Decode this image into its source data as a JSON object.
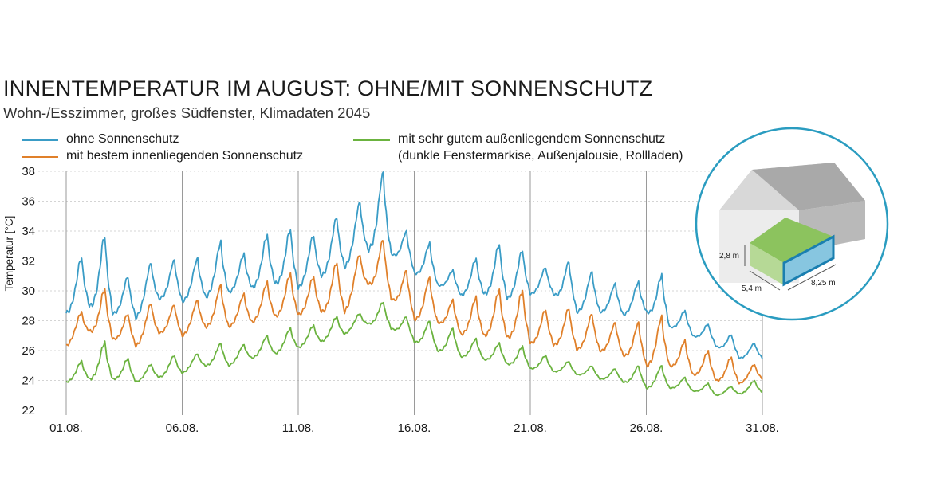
{
  "title": "INNENTEMPERATUR IM AUGUST: OHNE/MIT SONNENSCHUTZ",
  "subtitle": "Wohn-/Esszimmer, großes Südfenster, Klimadaten 2045",
  "legend": [
    {
      "label": "ohne Sonnenschutz",
      "color": "#3a9cc6"
    },
    {
      "label": "mit bestem innenliegenden Sonnenschutz",
      "color": "#e0802a"
    },
    {
      "label": "mit sehr gutem außenliegendem Sonnenschutz",
      "label2": "(dunkle Fenstermarkise, Außenjalousie, Rollladen)",
      "color": "#6bb33f"
    }
  ],
  "room_diagram": {
    "height_label": "2,8 m",
    "depth_label": "5,4 m",
    "width_label": "8,25 m"
  },
  "chart_data": {
    "type": "line",
    "title": "INNENTEMPERATUR IM AUGUST: OHNE/MIT SONNENSCHUTZ",
    "xlabel": "",
    "ylabel": "Temperatur [°C]",
    "ylim": [
      22,
      38
    ],
    "yticks": [
      22,
      24,
      26,
      28,
      30,
      32,
      34,
      36,
      38
    ],
    "xlim": [
      1,
      31
    ],
    "xticks": [
      {
        "day": 1,
        "label": "01.08."
      },
      {
        "day": 6,
        "label": "06.08."
      },
      {
        "day": 11,
        "label": "11.08."
      },
      {
        "day": 16,
        "label": "16.08."
      },
      {
        "day": 21,
        "label": "21.08."
      },
      {
        "day": 26,
        "label": "26.08."
      },
      {
        "day": 31,
        "label": "31.08."
      }
    ],
    "series": [
      {
        "name": "ohne Sonnenschutz",
        "color": "#3a9cc6",
        "daily_min": [
          28.5,
          29.0,
          28.5,
          28.2,
          29.5,
          29.3,
          29.6,
          29.9,
          30.2,
          30.5,
          30.2,
          31.0,
          31.6,
          32.8,
          32.5,
          31.2,
          30.4,
          29.7,
          29.8,
          29.5,
          29.8,
          29.8,
          28.6,
          28.6,
          28.4,
          28.6,
          27.6,
          27.0,
          26.3,
          25.5,
          25.5
        ],
        "daily_max": [
          32.3,
          33.8,
          31.0,
          31.9,
          32.1,
          32.2,
          33.3,
          32.5,
          33.8,
          34.2,
          33.8,
          35.0,
          36.0,
          38.0,
          34.0,
          33.2,
          31.4,
          32.2,
          33.2,
          32.8,
          31.6,
          32.0,
          31.3,
          30.5,
          30.6,
          31.1,
          28.7,
          27.8,
          27.1,
          26.5,
          26.6
        ]
      },
      {
        "name": "mit bestem innenliegenden Sonnenschutz",
        "color": "#e0802a",
        "daily_min": [
          26.3,
          27.3,
          26.8,
          26.3,
          27.2,
          27.0,
          27.6,
          27.6,
          27.9,
          28.3,
          28.4,
          28.6,
          28.6,
          30.5,
          29.5,
          28.1,
          27.9,
          27.1,
          27.0,
          26.9,
          26.5,
          26.4,
          26.1,
          26.0,
          25.7,
          25.0,
          25.0,
          24.4,
          24.0,
          23.8,
          24.1
        ],
        "daily_max": [
          28.6,
          30.2,
          28.5,
          29.2,
          29.1,
          29.4,
          30.4,
          29.8,
          30.6,
          31.2,
          31.0,
          32.0,
          32.5,
          33.5,
          31.4,
          30.9,
          29.4,
          29.6,
          30.1,
          30.1,
          28.8,
          28.9,
          28.5,
          27.9,
          27.9,
          28.3,
          26.7,
          26.0,
          25.6,
          25.1,
          25.2
        ]
      },
      {
        "name": "mit sehr gutem außenliegendem Sonnenschutz",
        "color": "#6bb33f",
        "daily_min": [
          23.9,
          24.1,
          24.1,
          23.9,
          24.2,
          24.5,
          25.0,
          25.0,
          25.5,
          25.8,
          26.2,
          26.6,
          27.1,
          27.8,
          27.5,
          26.6,
          26.0,
          25.6,
          25.4,
          25.1,
          24.8,
          24.6,
          24.4,
          24.1,
          23.9,
          23.5,
          23.5,
          23.3,
          23.0,
          23.1,
          23.2
        ],
        "daily_max": [
          25.3,
          26.6,
          25.5,
          25.1,
          25.7,
          25.8,
          26.5,
          26.4,
          27.0,
          27.5,
          27.7,
          28.3,
          28.5,
          29.3,
          28.3,
          28.0,
          27.5,
          26.8,
          26.5,
          26.3,
          25.7,
          25.3,
          25.0,
          24.8,
          25.0,
          25.0,
          24.2,
          23.8,
          23.6,
          24.0,
          24.3
        ]
      }
    ]
  }
}
